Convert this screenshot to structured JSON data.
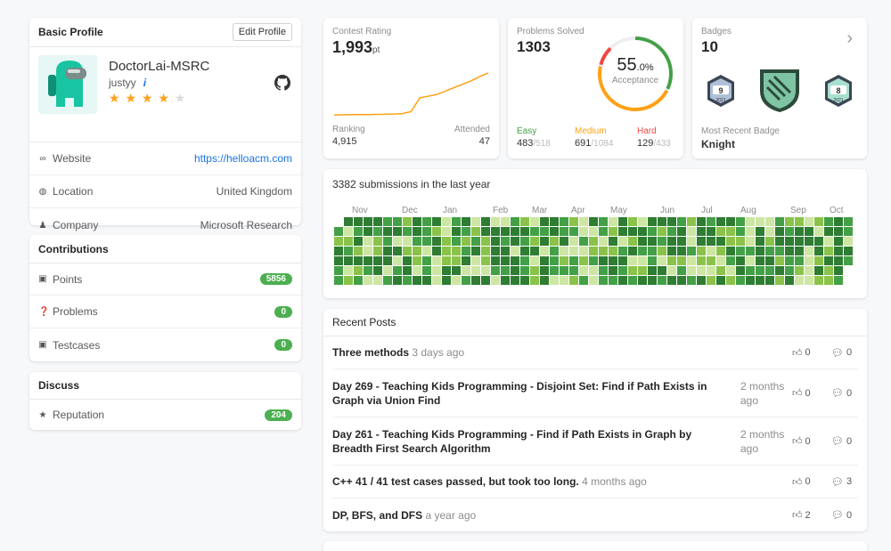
{
  "profile": {
    "header": "Basic Profile",
    "edit_label": "Edit Profile",
    "display_name": "DoctorLai-MSRC",
    "username": "justyy",
    "info_mark": "i",
    "stars": "★ ★ ★ ★",
    "stars_empty": "★",
    "rows": [
      {
        "label": "Website",
        "value": "https://helloacm.com",
        "icon": "link-icon"
      },
      {
        "label": "Location",
        "value": "United Kingdom",
        "icon": "globe-icon"
      },
      {
        "label": "Company",
        "value": "Microsoft Research",
        "icon": "people-icon"
      }
    ],
    "colors": {
      "avatar_bg": "#e6f7f5",
      "avatar_body": "#19c4a2",
      "link": "#1a73e8",
      "star": "#ffa116"
    }
  },
  "contributions": {
    "header": "Contributions",
    "rows": [
      {
        "label": "Points",
        "value": "5856",
        "icon": "gift-icon"
      },
      {
        "label": "Problems",
        "value": "0",
        "icon": "question-icon"
      },
      {
        "label": "Testcases",
        "value": "0",
        "icon": "gift-icon"
      }
    ]
  },
  "discuss": {
    "header": "Discuss",
    "rows": [
      {
        "label": "Reputation",
        "value": "204",
        "icon": "star-icon"
      }
    ]
  },
  "contest": {
    "label": "Contest Rating",
    "rating": "1,993",
    "unit": "pt",
    "ranking_label": "Ranking",
    "ranking": "4,915",
    "attended_label": "Attended",
    "attended": "47",
    "line_color": "#ffa116",
    "trend": [
      1500,
      1502,
      1503,
      1505,
      1504,
      1506,
      1508,
      1510,
      1515,
      1540,
      1700,
      1720,
      1740,
      1780,
      1820,
      1860,
      1900,
      1950,
      1993
    ]
  },
  "problems": {
    "label": "Problems Solved",
    "total": "1303",
    "percent_int": "55",
    "percent_dec": ".0%",
    "acceptance_label": "Acceptance",
    "acceptance_pct": 55.0,
    "easy": {
      "label": "Easy",
      "solved": "483",
      "total": "/518",
      "color": "#43a047"
    },
    "medium": {
      "label": "Medium",
      "solved": "691",
      "total": "/1084",
      "color": "#ffa116"
    },
    "hard": {
      "label": "Hard",
      "solved": "129",
      "total": "/433",
      "color": "#ef4743"
    }
  },
  "badges": {
    "label": "Badges",
    "count": "10",
    "recent_label": "Most Recent Badge",
    "recent_name": "Knight",
    "items": [
      {
        "num": "9",
        "year": "2021"
      },
      {
        "num": "8",
        "year": "2021"
      }
    ]
  },
  "calendar": {
    "title": "3382 submissions in the last year",
    "months": [
      "Nov",
      "Dec",
      "Jan",
      "Feb",
      "Mar",
      "Apr",
      "May",
      "Jun",
      "Jul",
      "Aug",
      "Sep",
      "Oct"
    ],
    "palette": [
      "#2e7d32",
      "#43a047",
      "#8bc34a",
      "#cde6a3"
    ]
  },
  "posts": {
    "header": "Recent Posts",
    "items": [
      {
        "title": "Three methods",
        "time": "3 days ago",
        "votes": "0",
        "comments": "0"
      },
      {
        "title": "Day 269 - Teaching Kids Programming - Disjoint Set: Find if Path Exists in Graph via Union Find",
        "time": "2 months ago",
        "votes": "0",
        "comments": "0"
      },
      {
        "title": "Day 261 - Teaching Kids Programming - Find if Path Exists in Graph by Breadth First Search Algorithm",
        "time": "2 months ago",
        "votes": "0",
        "comments": "0"
      },
      {
        "title": "C++ 41 / 41 test cases passed, but took too long.",
        "time": "4 months ago",
        "votes": "0",
        "comments": "3"
      },
      {
        "title": "DP, BFS, and DFS",
        "time": "a year ago",
        "votes": "2",
        "comments": "0"
      }
    ]
  }
}
